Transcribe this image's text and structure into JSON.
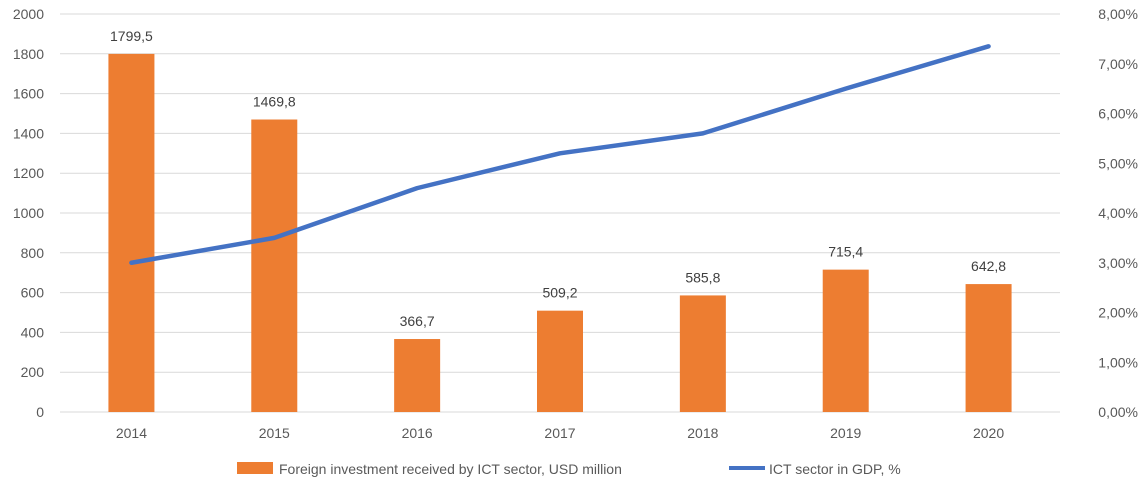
{
  "chart_data": {
    "type": "bar",
    "categories": [
      "2014",
      "2015",
      "2016",
      "2017",
      "2018",
      "2019",
      "2020"
    ],
    "series": [
      {
        "name": "Foreign investment received by ICT sector, USD million",
        "kind": "bar",
        "axis": "left",
        "color": "#ED7D31",
        "values": [
          1799.5,
          1469.8,
          366.7,
          509.2,
          585.8,
          715.4,
          642.8
        ],
        "labels": [
          "1799,5",
          "1469,8",
          "366,7",
          "509,2",
          "585,8",
          "715,4",
          "642,8"
        ]
      },
      {
        "name": "ICT sector in GDP, %",
        "kind": "line",
        "axis": "right",
        "color": "#4472C4",
        "values": [
          3.0,
          3.5,
          4.5,
          5.2,
          5.6,
          6.5,
          7.35
        ]
      }
    ],
    "y_left": {
      "range": [
        0,
        2000
      ],
      "ticks": [
        "0",
        "200",
        "400",
        "600",
        "800",
        "1000",
        "1200",
        "1400",
        "1600",
        "1800",
        "2000"
      ]
    },
    "y_right": {
      "range": [
        0,
        8
      ],
      "ticks": [
        "0,00%",
        "1,00%",
        "2,00%",
        "3,00%",
        "4,00%",
        "5,00%",
        "6,00%",
        "7,00%",
        "8,00%"
      ]
    },
    "grid": true,
    "legend": "bottom"
  }
}
